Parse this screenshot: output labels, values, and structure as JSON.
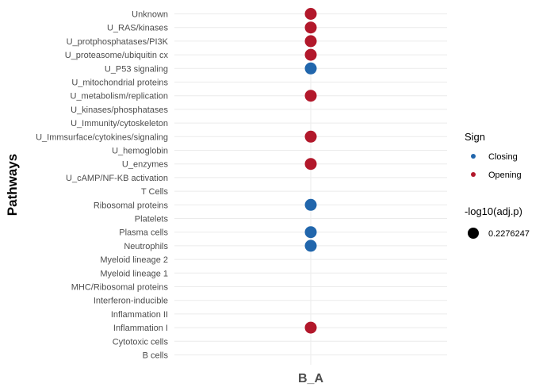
{
  "chart_data": {
    "type": "scatter",
    "title": "",
    "xlabel": "",
    "ylabel": "Pathways",
    "x_categories": [
      "B_A"
    ],
    "y_categories": [
      "Unknown",
      "U_RAS/kinases",
      "U_protphosphatases/PI3K",
      "U_proteasome/ubiquitin cx",
      "U_P53 signaling",
      "U_mitochondrial proteins",
      "U_metabolism/replication",
      "U_kinases/phosphatases",
      "U_Immunity/cytoskeleton",
      "U_Immsurface/cytokines/signaling",
      "U_hemoglobin",
      "U_enzymes",
      "U_cAMP/NF-KB activation",
      "T Cells",
      "Ribosomal proteins",
      "Platelets",
      "Plasma cells",
      "Neutrophils",
      "Myeloid lineage 2",
      "Myeloid lineage 1",
      "MHC/Ribosomal proteins",
      "Interferon-inducible",
      "Inflammation II",
      "Inflammation I",
      "Cytotoxic cells",
      "B cells"
    ],
    "points": [
      {
        "x": "B_A",
        "y": "Unknown",
        "sign": "Opening",
        "size": 0.2276247
      },
      {
        "x": "B_A",
        "y": "U_RAS/kinases",
        "sign": "Opening",
        "size": 0.2276247
      },
      {
        "x": "B_A",
        "y": "U_protphosphatases/PI3K",
        "sign": "Opening",
        "size": 0.2276247
      },
      {
        "x": "B_A",
        "y": "U_proteasome/ubiquitin cx",
        "sign": "Opening",
        "size": 0.2276247
      },
      {
        "x": "B_A",
        "y": "U_P53 signaling",
        "sign": "Closing",
        "size": 0.2276247
      },
      {
        "x": "B_A",
        "y": "U_metabolism/replication",
        "sign": "Opening",
        "size": 0.2276247
      },
      {
        "x": "B_A",
        "y": "U_Immsurface/cytokines/signaling",
        "sign": "Opening",
        "size": 0.2276247
      },
      {
        "x": "B_A",
        "y": "U_enzymes",
        "sign": "Opening",
        "size": 0.2276247
      },
      {
        "x": "B_A",
        "y": "Ribosomal proteins",
        "sign": "Closing",
        "size": 0.2276247
      },
      {
        "x": "B_A",
        "y": "Plasma cells",
        "sign": "Closing",
        "size": 0.2276247
      },
      {
        "x": "B_A",
        "y": "Neutrophils",
        "sign": "Closing",
        "size": 0.2276247
      },
      {
        "x": "B_A",
        "y": "Inflammation I",
        "sign": "Opening",
        "size": 0.2276247
      }
    ],
    "colors": {
      "Closing": "#2166ac",
      "Opening": "#b2182b"
    },
    "grid": true,
    "legend_position": "right",
    "legend": {
      "color_title": "Sign",
      "color_entries": [
        "Closing",
        "Opening"
      ],
      "size_title": "-log10(adj.p)",
      "size_entries": [
        "0.2276247"
      ]
    }
  }
}
